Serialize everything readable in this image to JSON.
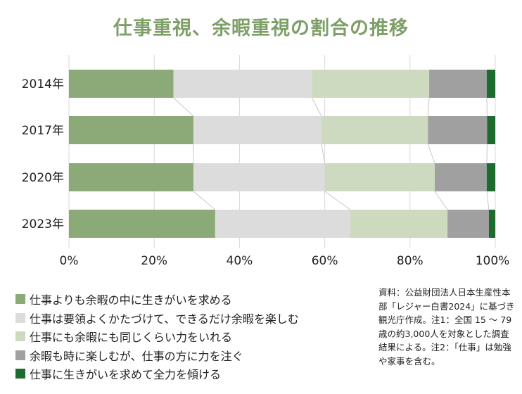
{
  "chart_data": {
    "type": "bar",
    "orientation": "horizontal",
    "stacked": "percent",
    "title": "仕事重視、余暇重視の割合の推移",
    "categories": [
      "2014年",
      "2017年",
      "2020年",
      "2023年"
    ],
    "xticks": [
      "0%",
      "20%",
      "40%",
      "60%",
      "80%",
      "100%"
    ],
    "xlim": [
      0,
      100
    ],
    "grid": true,
    "legend_position": "bottom-left",
    "series": [
      {
        "name": "仕事よりも余暇の中に生きがいを求める",
        "color": "#8baa78",
        "values": [
          24.5,
          29.2,
          29.2,
          34.3
        ]
      },
      {
        "name": "仕事は要領よくかたづけて、できるだけ余暇を楽しむ",
        "color": "#dcdcdc",
        "values": [
          32.5,
          30.0,
          30.8,
          31.7
        ]
      },
      {
        "name": "仕事にも余暇にも同じくらい力をいれる",
        "color": "#cddabf",
        "values": [
          27.5,
          25.0,
          25.8,
          22.8
        ]
      },
      {
        "name": "余暇も時に楽しむが、仕事の方に力を注ぐ",
        "color": "#a0a0a0",
        "values": [
          13.5,
          13.9,
          12.2,
          9.7
        ]
      },
      {
        "name": "仕事に生きがいを求めて全力を傾ける",
        "color": "#1e6b2e",
        "values": [
          2.0,
          1.9,
          2.0,
          1.5
        ]
      }
    ]
  },
  "source_note": "資料：公益財団法人日本生産性本部「レジャー白書2024」に基づき観光庁作成。注1：全国 15 ～ 79 歳の約3,000人を対象とした調査結果による。注2：「仕事」は勉強や家事を含む。"
}
